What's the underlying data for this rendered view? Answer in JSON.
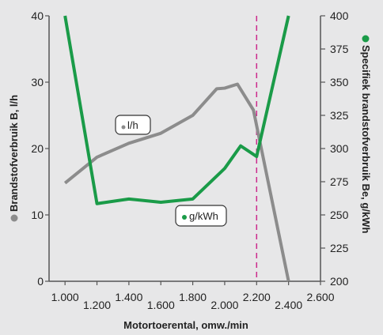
{
  "chart_data": {
    "type": "line",
    "xlabel": "Motortoerental, omw./min",
    "ylabel_left": "Brandstofverbruik B, l/h",
    "ylabel_right": "Specifiek brandstofverbruik Be, g/kWh",
    "xlim": [
      900,
      2600
    ],
    "ylim_left": [
      0,
      40
    ],
    "ylim_right": [
      200,
      400
    ],
    "x_ticks": [
      1000,
      1200,
      1400,
      1600,
      1800,
      2000,
      2200,
      2400,
      2600
    ],
    "x_tick_labels": [
      "1.000",
      "1.200",
      "1.400",
      "1.600",
      "1.800",
      "2.000",
      "2.200",
      "2.400",
      "2.600"
    ],
    "y_left_ticks": [
      0,
      10,
      20,
      30,
      40
    ],
    "y_left_tick_labels": [
      "0",
      "10",
      "20",
      "30",
      "40"
    ],
    "y_right_ticks": [
      200,
      225,
      250,
      275,
      300,
      325,
      350,
      375,
      400
    ],
    "y_right_tick_labels": [
      "200",
      "225",
      "250",
      "275",
      "300",
      "325",
      "350",
      "375",
      "400"
    ],
    "grid": false,
    "reference_line_x": 2200,
    "series": [
      {
        "name": "l/h",
        "axis": "left",
        "color": "#8c8c8c",
        "x": [
          1000,
          1200,
          1400,
          1600,
          1800,
          1950,
          2000,
          2080,
          2180,
          2400
        ],
        "y": [
          14.8,
          18.7,
          20.8,
          22.3,
          25.0,
          29.0,
          29.1,
          29.7,
          25.8,
          0
        ]
      },
      {
        "name": "g/kWh",
        "axis": "right",
        "color": "#1a9b48",
        "x": [
          1000,
          1200,
          1400,
          1600,
          1800,
          2000,
          2100,
          2200,
          2400
        ],
        "y": [
          400,
          258.5,
          262,
          259.5,
          262,
          285,
          302,
          294,
          400
        ]
      }
    ],
    "annotations": [
      {
        "text": "l/h",
        "series": 0
      },
      {
        "text": "g/kWh",
        "series": 1
      }
    ]
  },
  "colors": {
    "background": "#e7e7e8",
    "axis": "#555555",
    "reference_line": "#cc2b8c",
    "label_box_border": "#333333"
  }
}
